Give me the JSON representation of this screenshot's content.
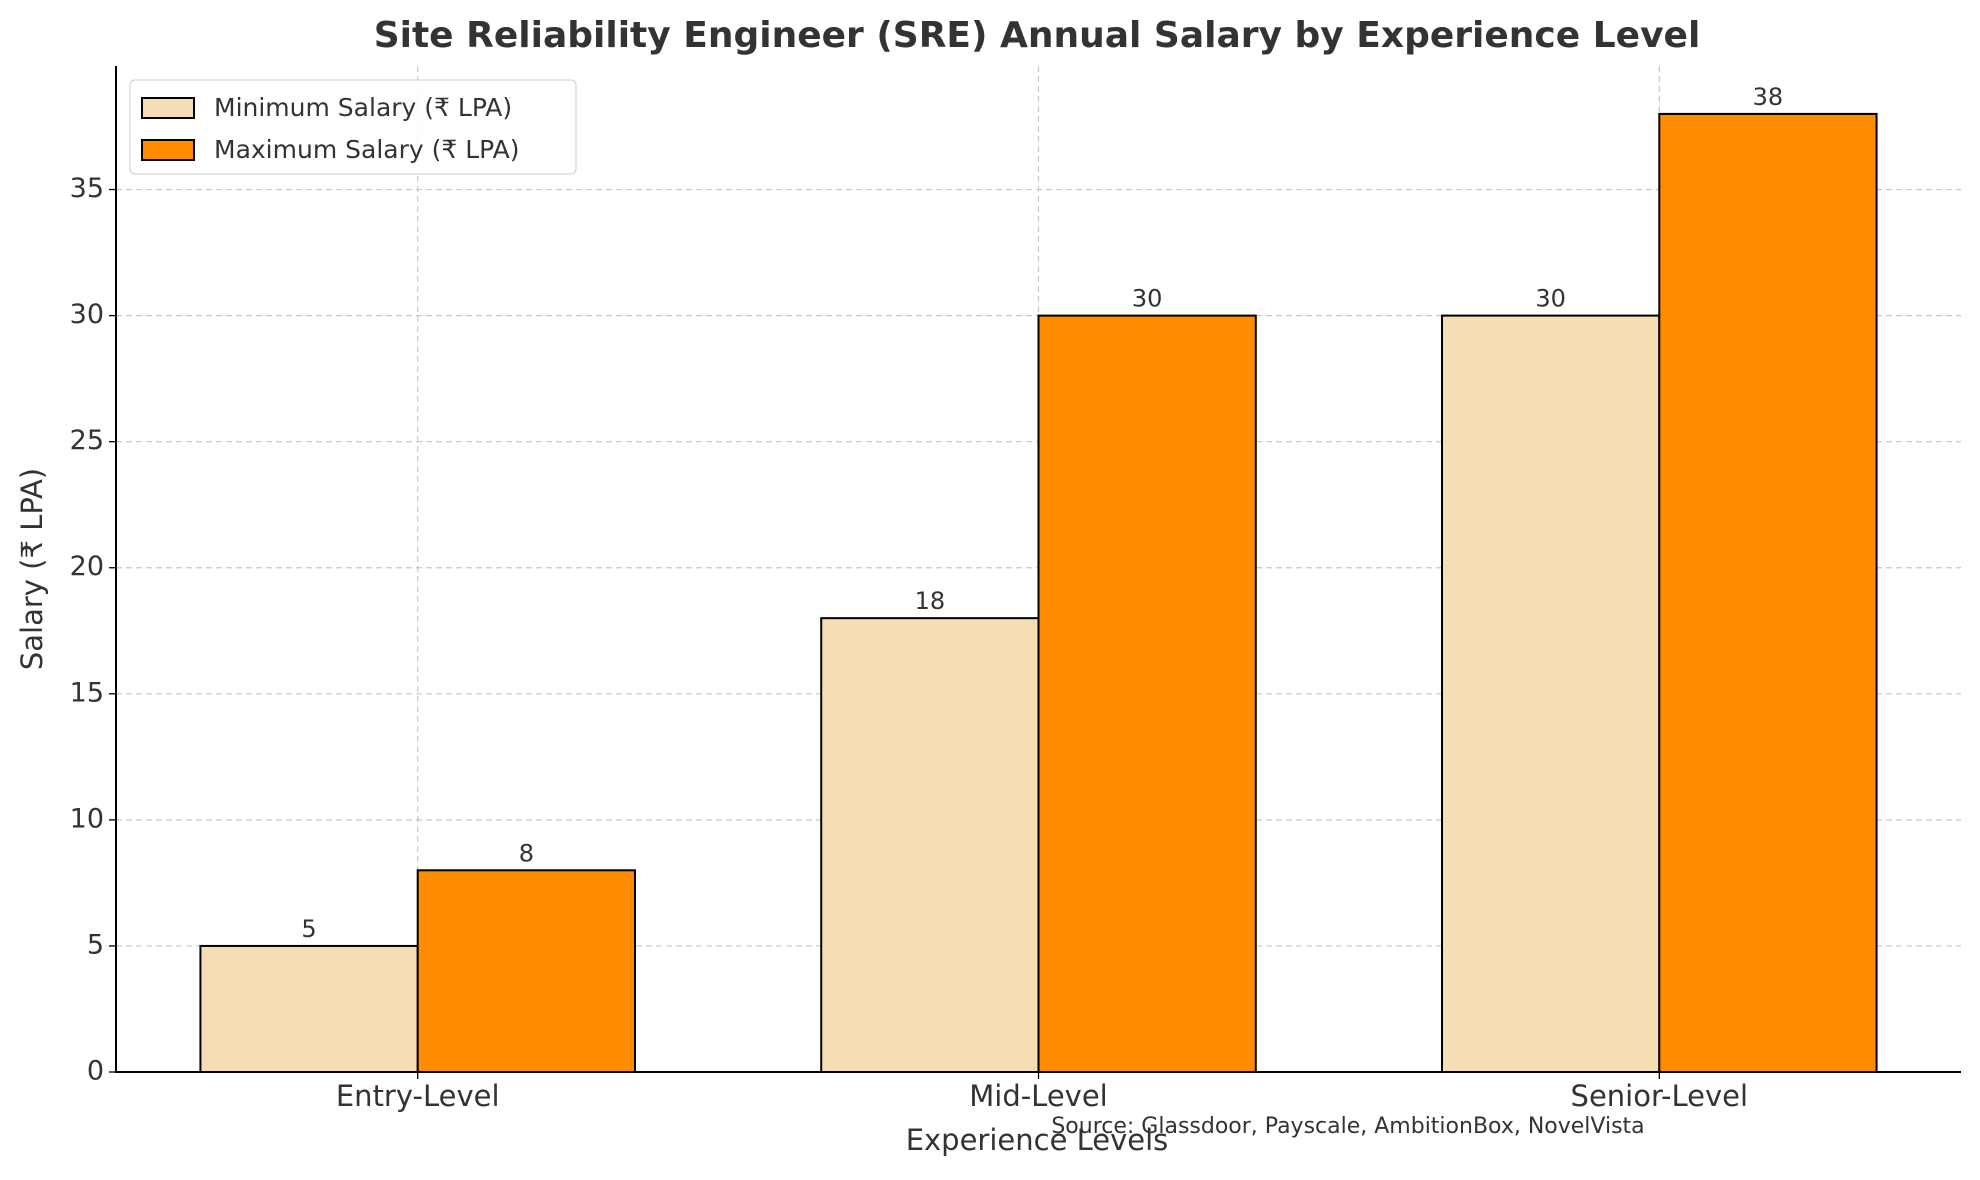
{
  "chart_data": {
    "type": "bar",
    "title": "Site Reliability Engineer (SRE) Annual Salary by Experience Level",
    "x_label": "Experience Levels",
    "y_label": "Salary (₹ LPA)",
    "annotation": "Source: Glassdoor, Payscale, AmbitionBox, NovelVista",
    "categories": [
      "Entry-Level",
      "Mid-Level",
      "Senior-Level"
    ],
    "series": [
      {
        "name": "Minimum Salary (₹ LPA)",
        "color": "#f5deb3",
        "values": [
          5,
          18,
          30
        ]
      },
      {
        "name": "Maximum Salary (₹ LPA)",
        "color": "#ff8c00",
        "values": [
          8,
          30,
          38
        ]
      }
    ],
    "ylim": [
      0,
      39.9
    ],
    "yticks": [
      0,
      5,
      10,
      15,
      20,
      25,
      30,
      35
    ],
    "grid": true,
    "legend": "upper-left"
  }
}
